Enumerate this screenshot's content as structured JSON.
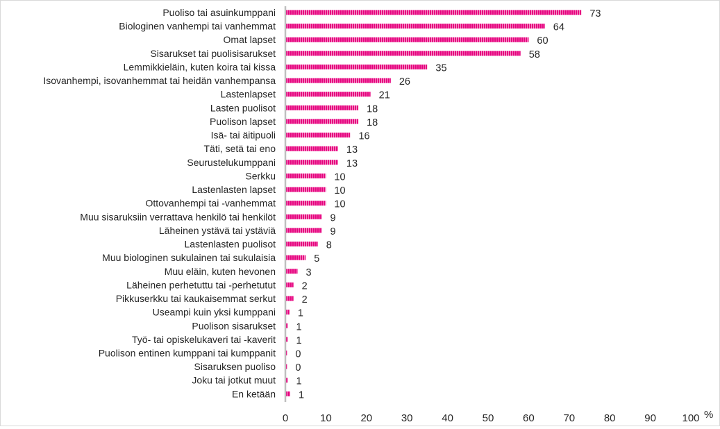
{
  "chart_data": {
    "type": "bar",
    "orientation": "horizontal",
    "title": "",
    "xlabel": "",
    "ylabel": "",
    "unit_label": "%",
    "xlim": [
      0,
      100
    ],
    "x_ticks": [
      0,
      10,
      20,
      30,
      40,
      50,
      60,
      70,
      80,
      90,
      100
    ],
    "grid": false,
    "legend": "none",
    "bar_color": "#e6007e",
    "categories": [
      "Puoliso tai asuinkumppani",
      "Biologinen vanhempi tai vanhemmat",
      "Omat lapset",
      "Sisarukset tai puolisisarukset",
      "Lemmikkieläin, kuten koira tai kissa",
      "Isovanhempi, isovanhemmat tai heidän vanhempansa",
      "Lastenlapset",
      "Lasten puolisot",
      "Puolison lapset",
      "Isä- tai äitipuoli",
      "Täti, setä tai eno",
      "Seurustelukumppani",
      "Serkku",
      "Lastenlasten lapset",
      "Ottovanhempi tai -vanhemmat",
      "Muu sisaruksiin verrattava henkilö tai henkilöt",
      "Läheinen ystävä tai ystäviä",
      "Lastenlasten puolisot",
      "Muu biologinen sukulainen tai sukulaisia",
      "Muu eläin, kuten hevonen",
      "Läheinen perhetuttu tai -perhetutut",
      "Pikkuserkku tai kaukaisemmat serkut",
      "Useampi kuin yksi kumppani",
      "Puolison sisarukset",
      "Työ- tai opiskelukaveri tai -kaverit",
      "Puolison entinen kumppani tai kumppanit",
      "Sisaruksen puoliso",
      "Joku tai jotkut muut",
      "En ketään"
    ],
    "values": [
      73,
      64,
      60,
      58,
      35,
      26,
      21,
      18,
      18,
      16,
      13,
      13,
      10,
      10,
      10,
      9,
      9,
      8,
      5,
      3,
      2,
      2,
      1,
      1,
      1,
      0,
      0,
      1,
      1
    ],
    "plotted_values": [
      73,
      64,
      60,
      58,
      35,
      26,
      21,
      18,
      18,
      16,
      13,
      13,
      10,
      10,
      10,
      9,
      9,
      8,
      5,
      3,
      2,
      2,
      1,
      0.6,
      0.6,
      0.4,
      0.4,
      0.6,
      1.2
    ]
  }
}
